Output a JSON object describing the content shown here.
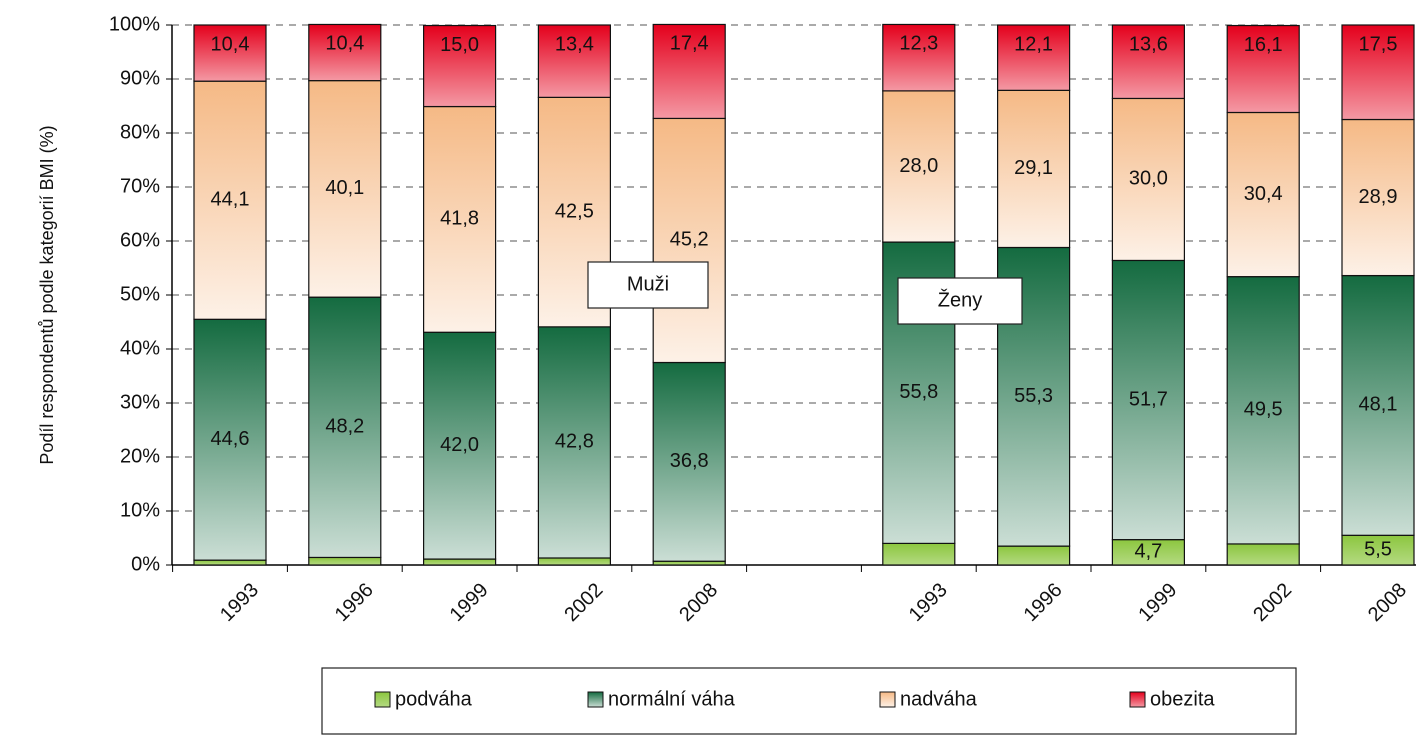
{
  "chart_data": {
    "type": "stacked-bar",
    "y_label": "Podíl respondentů podle kategorií BMI (%)",
    "categories": [
      "1993",
      "1996",
      "1999",
      "2002",
      "2008",
      null,
      "1993",
      "1996",
      "1999",
      "2002",
      "2008"
    ],
    "series": [
      {
        "name": "podváha",
        "color": "#8cc63f",
        "values": [
          0.9,
          1.4,
          1.1,
          1.3,
          0.7,
          null,
          4.0,
          3.5,
          4.7,
          3.9,
          5.5
        ],
        "value_labels": [
          "0,9",
          "1,4",
          "1,1",
          "1,3",
          "0,7",
          null,
          "4,0",
          "3,5",
          "4,7",
          "3,9",
          "5,5"
        ]
      },
      {
        "name": "normální váha",
        "color": "#146b40",
        "values": [
          44.6,
          48.2,
          42.0,
          42.8,
          36.8,
          null,
          55.8,
          55.3,
          51.7,
          49.5,
          48.1
        ],
        "value_labels": [
          "44,6",
          "48,2",
          "42,0",
          "42,8",
          "36,8",
          null,
          "55,8",
          "55,3",
          "51,7",
          "49,5",
          "48,1"
        ]
      },
      {
        "name": "nadváha",
        "color": "#f5b985",
        "values": [
          44.1,
          40.1,
          41.8,
          42.5,
          45.2,
          null,
          28.0,
          29.1,
          30.0,
          30.4,
          28.9
        ],
        "value_labels": [
          "44,1",
          "40,1",
          "41,8",
          "42,5",
          "45,2",
          null,
          "28,0",
          "29,1",
          "30,0",
          "30,4",
          "28,9"
        ]
      },
      {
        "name": "obezita",
        "color": "#e4001c",
        "values": [
          10.4,
          10.4,
          15.0,
          13.4,
          17.4,
          null,
          12.3,
          12.1,
          13.6,
          16.1,
          17.5
        ],
        "value_labels": [
          "10,4",
          "10,4",
          "15,0",
          "13,4",
          "17,4",
          null,
          "12,3",
          "12,1",
          "13,6",
          "16,1",
          "17,5"
        ]
      }
    ],
    "annotations": [
      "Muži",
      "Ženy"
    ],
    "ylim": [
      0,
      100
    ],
    "yticks": [
      {
        "value": 0,
        "label": "0%"
      },
      {
        "value": 10,
        "label": "10%"
      },
      {
        "value": 20,
        "label": "20%"
      },
      {
        "value": 30,
        "label": "30%"
      },
      {
        "value": 40,
        "label": "40%"
      },
      {
        "value": 50,
        "label": "50%"
      },
      {
        "value": 60,
        "label": "60%"
      },
      {
        "value": 70,
        "label": "70%"
      },
      {
        "value": 80,
        "label": "80%"
      },
      {
        "value": 90,
        "label": "90%"
      },
      {
        "value": {
          "v": 100
        },
        "label": "100%"
      }
    ],
    "grid": true
  }
}
